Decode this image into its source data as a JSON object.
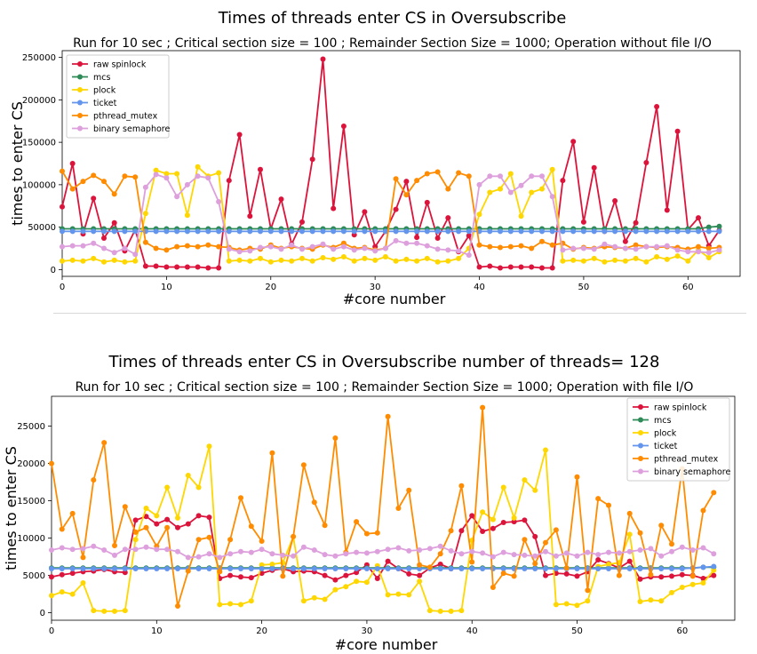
{
  "chart_data": [
    {
      "type": "line",
      "title": "Times of threads enter CS in Oversubscribe",
      "subtitle": "Run for 10 sec ; Critical section size = 100 ; Remainder Section Size = 1000; Operation without file I/O",
      "xlabel": "#core number",
      "ylabel": "times to enter CS",
      "xlim": [
        0,
        65
      ],
      "ylim": [
        -8000,
        258000
      ],
      "xticks": [
        0,
        10,
        20,
        30,
        40,
        50,
        60
      ],
      "yticks": [
        0,
        50000,
        100000,
        150000,
        200000,
        250000
      ],
      "grid": false,
      "legend_position": "top-left",
      "x": [
        0,
        1,
        2,
        3,
        4,
        5,
        6,
        7,
        8,
        9,
        10,
        11,
        12,
        13,
        14,
        15,
        16,
        17,
        18,
        19,
        20,
        21,
        22,
        23,
        24,
        25,
        26,
        27,
        28,
        29,
        30,
        31,
        32,
        33,
        34,
        35,
        36,
        37,
        38,
        39,
        40,
        41,
        42,
        43,
        44,
        45,
        46,
        47,
        48,
        49,
        50,
        51,
        52,
        53,
        54,
        55,
        56,
        57,
        58,
        59,
        60,
        61,
        62,
        63
      ],
      "series": [
        {
          "name": "raw spinlock",
          "color": "#dc143c",
          "values": [
            74000,
            125000,
            42000,
            84000,
            37000,
            55000,
            22000,
            47000,
            4000,
            4000,
            3000,
            3000,
            3000,
            3000,
            2000,
            2000,
            105000,
            159000,
            63000,
            118000,
            48000,
            83000,
            30000,
            56000,
            130000,
            248000,
            72000,
            169000,
            41000,
            68000,
            27000,
            45000,
            71000,
            104000,
            38000,
            79000,
            37000,
            61000,
            21000,
            40000,
            3000,
            4000,
            2000,
            3000,
            3000,
            3000,
            2000,
            2000,
            105000,
            151000,
            56000,
            120000,
            45000,
            81000,
            33000,
            55000,
            126000,
            192000,
            70000,
            163000,
            47000,
            61000,
            28000,
            46000
          ]
        },
        {
          "name": "mcs",
          "color": "#2e8b57",
          "values": [
            48000,
            48000,
            48000,
            48000,
            48000,
            48000,
            48000,
            48000,
            48000,
            48000,
            48000,
            48000,
            48000,
            48000,
            48000,
            48000,
            48000,
            48000,
            48000,
            48000,
            48000,
            48000,
            48000,
            48000,
            48000,
            48000,
            48000,
            48000,
            48000,
            48000,
            48000,
            48000,
            48000,
            48000,
            48000,
            48000,
            48000,
            48000,
            48000,
            48000,
            48000,
            48000,
            48000,
            48000,
            48000,
            48000,
            48000,
            48000,
            48000,
            48000,
            48000,
            48000,
            48000,
            48000,
            48000,
            48000,
            48000,
            48000,
            48000,
            48000,
            48000,
            48000,
            50000,
            51000
          ]
        },
        {
          "name": "plock",
          "color": "#ffd700",
          "values": [
            10000,
            11000,
            10000,
            13000,
            9000,
            11000,
            9000,
            10000,
            66000,
            117000,
            113000,
            113000,
            64000,
            121000,
            110000,
            114000,
            10000,
            11000,
            10000,
            13000,
            9000,
            11000,
            10000,
            13000,
            10000,
            14000,
            12000,
            15000,
            10000,
            13000,
            11000,
            15000,
            10000,
            12000,
            10000,
            13000,
            9000,
            10000,
            13000,
            25000,
            65000,
            91000,
            95000,
            113000,
            63000,
            91000,
            95000,
            118000,
            10000,
            11000,
            10000,
            13000,
            9000,
            11000,
            10000,
            13000,
            9000,
            15000,
            12000,
            16000,
            10000,
            23000,
            14000,
            21000
          ]
        },
        {
          "name": "ticket",
          "color": "#6495ed",
          "values": [
            45000,
            45000,
            45000,
            45000,
            45000,
            45000,
            45000,
            45000,
            45000,
            45000,
            45000,
            45000,
            45000,
            45000,
            45000,
            45000,
            45000,
            45000,
            45000,
            45000,
            45000,
            45000,
            45000,
            45000,
            45000,
            45000,
            45000,
            45000,
            45000,
            45000,
            45000,
            45000,
            45000,
            45000,
            45000,
            45000,
            45000,
            45000,
            45000,
            45000,
            45000,
            45000,
            45000,
            45000,
            45000,
            45000,
            45000,
            45000,
            45000,
            45000,
            45000,
            45000,
            45000,
            45000,
            45000,
            45000,
            45000,
            45000,
            45000,
            45000,
            45000,
            45000,
            45000,
            45000
          ]
        },
        {
          "name": "pthread_mutex",
          "color": "#ff8c00",
          "values": [
            116000,
            95000,
            104000,
            111000,
            104000,
            89000,
            110000,
            109000,
            32000,
            25000,
            23000,
            27000,
            28000,
            27000,
            29000,
            27000,
            26000,
            23000,
            25000,
            24000,
            29000,
            25000,
            27000,
            25000,
            24000,
            29000,
            26000,
            31000,
            25000,
            26000,
            23000,
            25000,
            107000,
            88000,
            105000,
            113000,
            115000,
            95000,
            114000,
            110000,
            29000,
            27000,
            26000,
            27000,
            28000,
            25000,
            33000,
            29000,
            31000,
            24000,
            26000,
            25000,
            27000,
            26000,
            25000,
            29000,
            27000,
            26000,
            27000,
            26000,
            24000,
            27000,
            25000,
            26000
          ]
        },
        {
          "name": "binary semaphore",
          "color": "#dda0dd",
          "values": [
            27000,
            28000,
            28000,
            31000,
            25000,
            20000,
            25000,
            18000,
            97000,
            112000,
            108000,
            86000,
            100000,
            110000,
            108000,
            80000,
            24000,
            21000,
            22000,
            26000,
            27000,
            24000,
            29000,
            24000,
            27000,
            30000,
            24000,
            27000,
            23000,
            25000,
            22000,
            25000,
            34000,
            31000,
            31000,
            28000,
            24000,
            23000,
            22000,
            17000,
            100000,
            110000,
            110000,
            91000,
            99000,
            110000,
            110000,
            86000,
            23000,
            25000,
            25000,
            24000,
            30000,
            27000,
            25000,
            24000,
            27000,
            27000,
            28000,
            23000,
            21000,
            21000,
            20000,
            23000
          ]
        }
      ]
    },
    {
      "type": "line",
      "title": "Times of threads enter CS in Oversubscribe number of threads= 128",
      "subtitle": "Run for 10 sec ; Critical section size = 100 ; Remainder Section Size = 1000; Operation with file I/O",
      "xlabel": "#core number",
      "ylabel": "times to enter CS",
      "xlim": [
        0,
        65
      ],
      "ylim": [
        -1000,
        29000
      ],
      "xticks": [
        0,
        10,
        20,
        30,
        40,
        50,
        60
      ],
      "yticks": [
        0,
        5000,
        10000,
        15000,
        20000,
        25000
      ],
      "grid": false,
      "legend_position": "top-right",
      "x": [
        0,
        1,
        2,
        3,
        4,
        5,
        6,
        7,
        8,
        9,
        10,
        11,
        12,
        13,
        14,
        15,
        16,
        17,
        18,
        19,
        20,
        21,
        22,
        23,
        24,
        25,
        26,
        27,
        28,
        29,
        30,
        31,
        32,
        33,
        34,
        35,
        36,
        37,
        38,
        39,
        40,
        41,
        42,
        43,
        44,
        45,
        46,
        47,
        48,
        49,
        50,
        51,
        52,
        53,
        54,
        55,
        56,
        57,
        58,
        59,
        60,
        61,
        62,
        63
      ],
      "series": [
        {
          "name": "raw spinlock",
          "color": "#dc143c",
          "values": [
            4800,
            5100,
            5300,
            5500,
            5600,
            5800,
            5500,
            5400,
            12400,
            12900,
            11900,
            12500,
            11400,
            11900,
            13000,
            12800,
            4600,
            5000,
            4800,
            4700,
            5300,
            5700,
            5900,
            5500,
            5600,
            5500,
            5000,
            4400,
            5000,
            5400,
            6400,
            4600,
            6900,
            5900,
            5200,
            5000,
            6000,
            6500,
            5900,
            11000,
            13000,
            10900,
            11300,
            12100,
            12200,
            12400,
            10200,
            5000,
            5300,
            5200,
            4900,
            5500,
            7100,
            6600,
            6000,
            6900,
            4500,
            4800,
            4800,
            4900,
            5100,
            5000,
            4600,
            5000
          ]
        },
        {
          "name": "mcs",
          "color": "#2e8b57",
          "values": [
            6000,
            6000,
            6000,
            6000,
            6000,
            6000,
            6000,
            6000,
            6000,
            6000,
            6000,
            6000,
            6000,
            6000,
            6000,
            6000,
            6000,
            6000,
            6000,
            6000,
            6000,
            6000,
            6000,
            6000,
            6000,
            6000,
            6000,
            6000,
            6000,
            6000,
            6000,
            6000,
            6000,
            6000,
            6000,
            6000,
            6000,
            6000,
            6000,
            6000,
            6000,
            6000,
            6000,
            6000,
            6000,
            6000,
            6000,
            6000,
            6000,
            6000,
            6000,
            6000,
            6000,
            6000,
            6000,
            6000,
            6000,
            6000,
            6000,
            6000,
            6000,
            6000,
            6100,
            6100
          ]
        },
        {
          "name": "plock",
          "color": "#ffd700",
          "values": [
            2300,
            2800,
            2500,
            4000,
            300,
            200,
            200,
            300,
            9800,
            14000,
            13000,
            16800,
            12700,
            18400,
            16800,
            22300,
            1100,
            1200,
            1100,
            1600,
            6400,
            6500,
            6700,
            10200,
            1600,
            2000,
            1800,
            3100,
            3500,
            4200,
            4100,
            6300,
            2400,
            2500,
            2400,
            4200,
            300,
            200,
            200,
            300,
            9700,
            13500,
            12500,
            16800,
            12700,
            17800,
            16400,
            21800,
            1100,
            1200,
            1000,
            1600,
            6200,
            6500,
            6700,
            10500,
            1500,
            1700,
            1600,
            2700,
            3400,
            3800,
            4000,
            5700
          ]
        },
        {
          "name": "ticket",
          "color": "#6495ed",
          "values": [
            5900,
            5900,
            5900,
            5900,
            5900,
            5900,
            5900,
            5900,
            5900,
            5900,
            5900,
            5900,
            5900,
            5900,
            5900,
            5900,
            5900,
            5900,
            5900,
            5900,
            5900,
            5900,
            5900,
            5900,
            5900,
            5900,
            5900,
            5900,
            5900,
            5900,
            5900,
            5900,
            5900,
            5900,
            5900,
            5900,
            5900,
            5900,
            5900,
            5900,
            5900,
            5900,
            5900,
            5900,
            5900,
            5900,
            5900,
            5900,
            5900,
            5900,
            5900,
            5900,
            5900,
            5900,
            5900,
            5900,
            5900,
            5900,
            5900,
            5900,
            5900,
            6000,
            6100,
            6200
          ]
        },
        {
          "name": "pthread_mutex",
          "color": "#ff8c00",
          "values": [
            20000,
            11200,
            13300,
            7400,
            17800,
            22800,
            9000,
            14200,
            10800,
            11400,
            8900,
            11400,
            900,
            5600,
            9800,
            10100,
            5500,
            9800,
            15400,
            11600,
            9600,
            21400,
            4900,
            10200,
            19800,
            14800,
            11700,
            23400,
            8100,
            12200,
            10600,
            10700,
            26300,
            14000,
            16400,
            6400,
            6100,
            7900,
            11000,
            17000,
            6800,
            27500,
            3400,
            5300,
            4900,
            9800,
            6600,
            9400,
            11100,
            6000,
            18200,
            3000,
            15300,
            14400,
            5000,
            13300,
            10700,
            5100,
            11700,
            9200,
            19300,
            4900,
            13700,
            16100
          ]
        },
        {
          "name": "binary semaphore",
          "color": "#dda0dd",
          "values": [
            8400,
            8700,
            8500,
            8600,
            8900,
            8400,
            7700,
            8500,
            8500,
            8800,
            8500,
            8500,
            8200,
            7400,
            7500,
            7900,
            7400,
            7900,
            8200,
            8100,
            8500,
            7900,
            7700,
            7600,
            8800,
            8400,
            7800,
            7600,
            7900,
            8100,
            8000,
            8200,
            8500,
            8700,
            8300,
            8400,
            8600,
            8900,
            8300,
            7900,
            8200,
            8000,
            7500,
            8100,
            7800,
            7700,
            7600,
            8200,
            7600,
            8000,
            7600,
            8100,
            7800,
            8100,
            8000,
            8200,
            8400,
            8600,
            7600,
            8200,
            8800,
            8400,
            8700,
            7900
          ]
        }
      ]
    }
  ]
}
